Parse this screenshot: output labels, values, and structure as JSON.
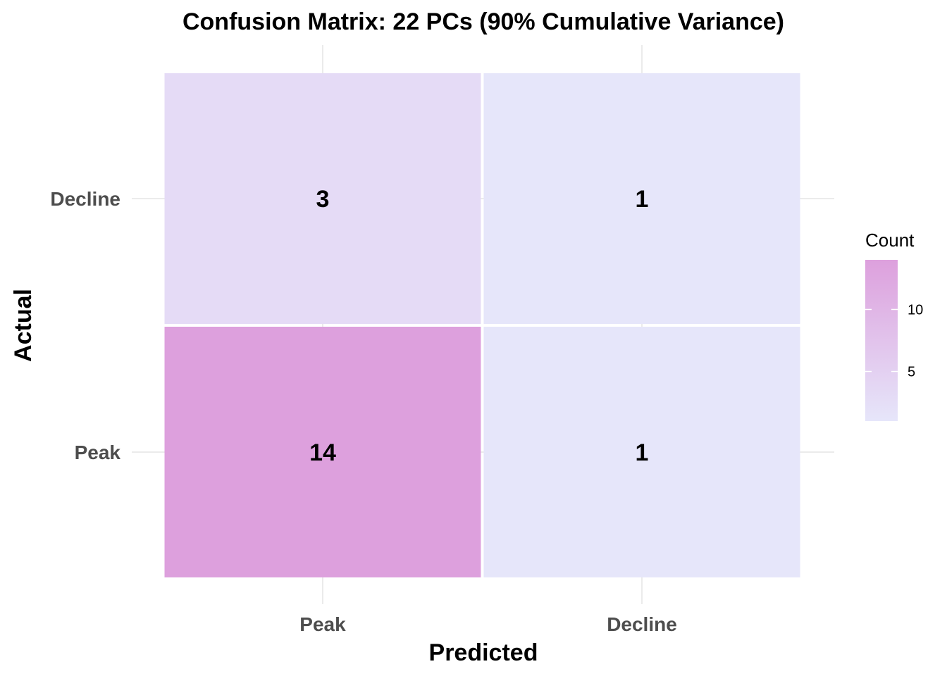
{
  "chart_data": {
    "type": "heatmap",
    "title": "Confusion Matrix: 22 PCs (90% Cumulative Variance)",
    "xlabel": "Predicted",
    "ylabel": "Actual",
    "x_categories": [
      "Peak",
      "Decline"
    ],
    "y_categories": [
      "Peak",
      "Decline"
    ],
    "cells": [
      {
        "actual": "Decline",
        "predicted": "Peak",
        "count": 3
      },
      {
        "actual": "Decline",
        "predicted": "Decline",
        "count": 1
      },
      {
        "actual": "Peak",
        "predicted": "Peak",
        "count": 14
      },
      {
        "actual": "Peak",
        "predicted": "Decline",
        "count": 1
      }
    ],
    "legend": {
      "title": "Count",
      "ticks": [
        5,
        10
      ],
      "range": [
        1,
        14
      ],
      "low_color": "#e6e6fa",
      "high_color": "#dda0dd",
      "placement": "right"
    },
    "grid": true
  }
}
